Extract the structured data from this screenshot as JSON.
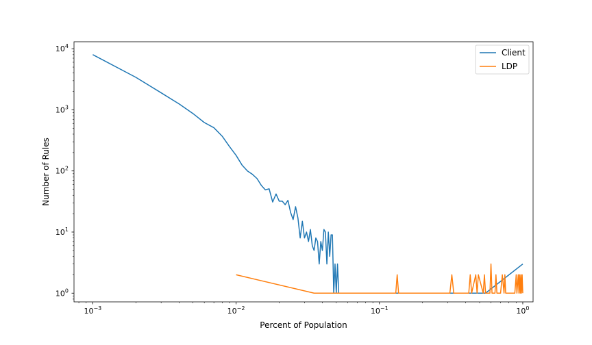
{
  "chart_data": {
    "type": "line",
    "xlabel": "Percent of Population",
    "ylabel": "Number of Rules",
    "xscale": "log",
    "yscale": "log",
    "xlim": [
      0.00074,
      1.18
    ],
    "ylim": [
      0.72,
      13000
    ],
    "x_ticks": [
      {
        "value": 0.001,
        "base": "10",
        "exp": "−3"
      },
      {
        "value": 0.01,
        "base": "10",
        "exp": "−2"
      },
      {
        "value": 0.1,
        "base": "10",
        "exp": "−1"
      },
      {
        "value": 1,
        "base": "10",
        "exp": "0"
      }
    ],
    "y_ticks": [
      {
        "value": 1,
        "base": "10",
        "exp": "0"
      },
      {
        "value": 10,
        "base": "10",
        "exp": "1"
      },
      {
        "value": 100,
        "base": "10",
        "exp": "2"
      },
      {
        "value": 1000,
        "base": "10",
        "exp": "3"
      },
      {
        "value": 10000,
        "base": "10",
        "exp": "4"
      }
    ],
    "grid": false,
    "legend_position": "top-right",
    "series": [
      {
        "name": "Client",
        "color": "#1f77b4",
        "x": [
          0.001,
          0.002,
          0.003,
          0.004,
          0.005,
          0.006,
          0.007,
          0.008,
          0.009,
          0.01,
          0.011,
          0.012,
          0.013,
          0.014,
          0.015,
          0.016,
          0.017,
          0.018,
          0.019,
          0.02,
          0.021,
          0.022,
          0.023,
          0.024,
          0.025,
          0.026,
          0.027,
          0.028,
          0.029,
          0.03,
          0.031,
          0.032,
          0.033,
          0.034,
          0.035,
          0.036,
          0.037,
          0.038,
          0.039,
          0.04,
          0.041,
          0.042,
          0.043,
          0.044,
          0.045,
          0.046,
          0.047,
          0.048,
          0.049,
          0.05,
          0.051,
          0.052,
          0.053,
          0.054,
          0.055,
          0.056,
          0.057,
          0.058,
          0.06,
          0.1,
          0.2,
          0.3,
          0.4,
          0.5,
          0.55,
          1.0
        ],
        "y": [
          8000,
          3400,
          1900,
          1250,
          870,
          620,
          510,
          370,
          250,
          180,
          125,
          100,
          88,
          75,
          58,
          49,
          51,
          31,
          42,
          32,
          32,
          28,
          33,
          21,
          16,
          26,
          17,
          8,
          15,
          8,
          10,
          7,
          11,
          6,
          5,
          8,
          7,
          3,
          7,
          5,
          11,
          10,
          3,
          10,
          4,
          9,
          9,
          1,
          3,
          1,
          3,
          1,
          1,
          1,
          1,
          1,
          1,
          1,
          1,
          1,
          1,
          1,
          1,
          1,
          1,
          3
        ]
      },
      {
        "name": "LDP",
        "color": "#ff7f0e",
        "x": [
          0.01,
          0.035,
          0.13,
          0.133,
          0.136,
          0.31,
          0.32,
          0.33,
          0.42,
          0.43,
          0.44,
          0.47,
          0.48,
          0.49,
          0.53,
          0.54,
          0.55,
          0.59,
          0.6,
          0.61,
          0.64,
          0.65,
          0.66,
          0.7,
          0.72,
          0.74,
          0.75,
          0.76,
          0.88,
          0.9,
          0.91,
          0.93,
          0.94,
          0.95,
          0.96,
          0.97,
          0.98,
          0.99,
          1.0
        ],
        "y": [
          2,
          1,
          1,
          2,
          1,
          1,
          2,
          1,
          1,
          2,
          1,
          2,
          1,
          2,
          1,
          2,
          1,
          1,
          3,
          1,
          1,
          2,
          1,
          1,
          2,
          1,
          2,
          1,
          1,
          2,
          1,
          2,
          1,
          2,
          1,
          2,
          1,
          2,
          1
        ]
      }
    ]
  }
}
